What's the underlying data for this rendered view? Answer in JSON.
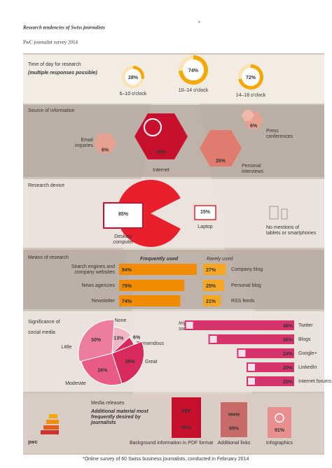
{
  "header": {
    "title": "Research tendencies of Swiss journalists",
    "title_mark": "*",
    "subtitle": "PwC journalist survey 2014"
  },
  "time_of_day": {
    "title": "Time of day for research",
    "note": "(multiple responses possible)",
    "items": [
      {
        "value": "28%",
        "label": "6–10 o'clock"
      },
      {
        "value": "74%",
        "label": "10–14 o'clock"
      },
      {
        "value": "72%",
        "label": "14–18 o'clock"
      }
    ]
  },
  "source": {
    "title": "Source of information",
    "items": [
      {
        "label": [
          "Email",
          "inquiries"
        ],
        "value": "6%"
      },
      {
        "label": [
          "Internet"
        ],
        "value": "55%"
      },
      {
        "label": [
          "Personal",
          "interviews"
        ],
        "value": "26%"
      },
      {
        "label": [
          "Press",
          "conferences"
        ],
        "value": "6%"
      }
    ]
  },
  "device": {
    "title": "Research device",
    "items": [
      {
        "label": [
          "Desktop",
          "computer"
        ],
        "value": "85%"
      },
      {
        "label": [
          "Laptop"
        ],
        "value": "15%"
      }
    ],
    "note": [
      "No mentions of",
      "tablets or smartphones"
    ]
  },
  "means": {
    "title": "Means of research",
    "frequent": {
      "heading": "Frequently used",
      "items": [
        {
          "label": [
            "Search engines and",
            "company websites"
          ],
          "value": "94%"
        },
        {
          "label": [
            "News agencies"
          ],
          "value": "79%"
        },
        {
          "label": [
            "Newsletter"
          ],
          "value": "74%"
        }
      ]
    },
    "rare": {
      "heading": "Rarely used",
      "items": [
        {
          "label": "Company blog",
          "value": "27%"
        },
        {
          "label": "Personal blog",
          "value": "25%"
        },
        {
          "label": "RSS feeds",
          "value": "21%"
        }
      ]
    }
  },
  "social": {
    "title": [
      "Significance of",
      "social media"
    ],
    "pie": [
      {
        "label": "None",
        "value": "13%"
      },
      {
        "label": "Tremendous",
        "value": "6%"
      },
      {
        "label": "Great",
        "value": "26%"
      },
      {
        "label": "Moderate",
        "value": "26%"
      },
      {
        "label": "Little",
        "value": "30%"
      }
    ],
    "tools": {
      "heading": [
        "Important",
        "social media tools"
      ],
      "items": [
        {
          "label": "Twitter",
          "value": "46%"
        },
        {
          "label": "Blogs",
          "value": "36%"
        },
        {
          "label": "Google+",
          "value": "24%"
        },
        {
          "label": "LinkedIn",
          "value": "20%"
        },
        {
          "label": "Internet forums",
          "value": "20%"
        }
      ]
    }
  },
  "releases": {
    "title": "Media releases",
    "subtitle": [
      "Additional material most",
      "frequently desired by",
      "journalists"
    ],
    "items": [
      {
        "icon": "PDF",
        "value": "98%",
        "label": "Background information in PDF format"
      },
      {
        "icon": "www",
        "value": "95%",
        "label": "Additional links"
      },
      {
        "value": "91%",
        "label": "Infographics"
      }
    ]
  },
  "footer": {
    "note": "*Online survey of 60 Swiss business journalists, conducted in February 2014",
    "logo": "pwc"
  }
}
